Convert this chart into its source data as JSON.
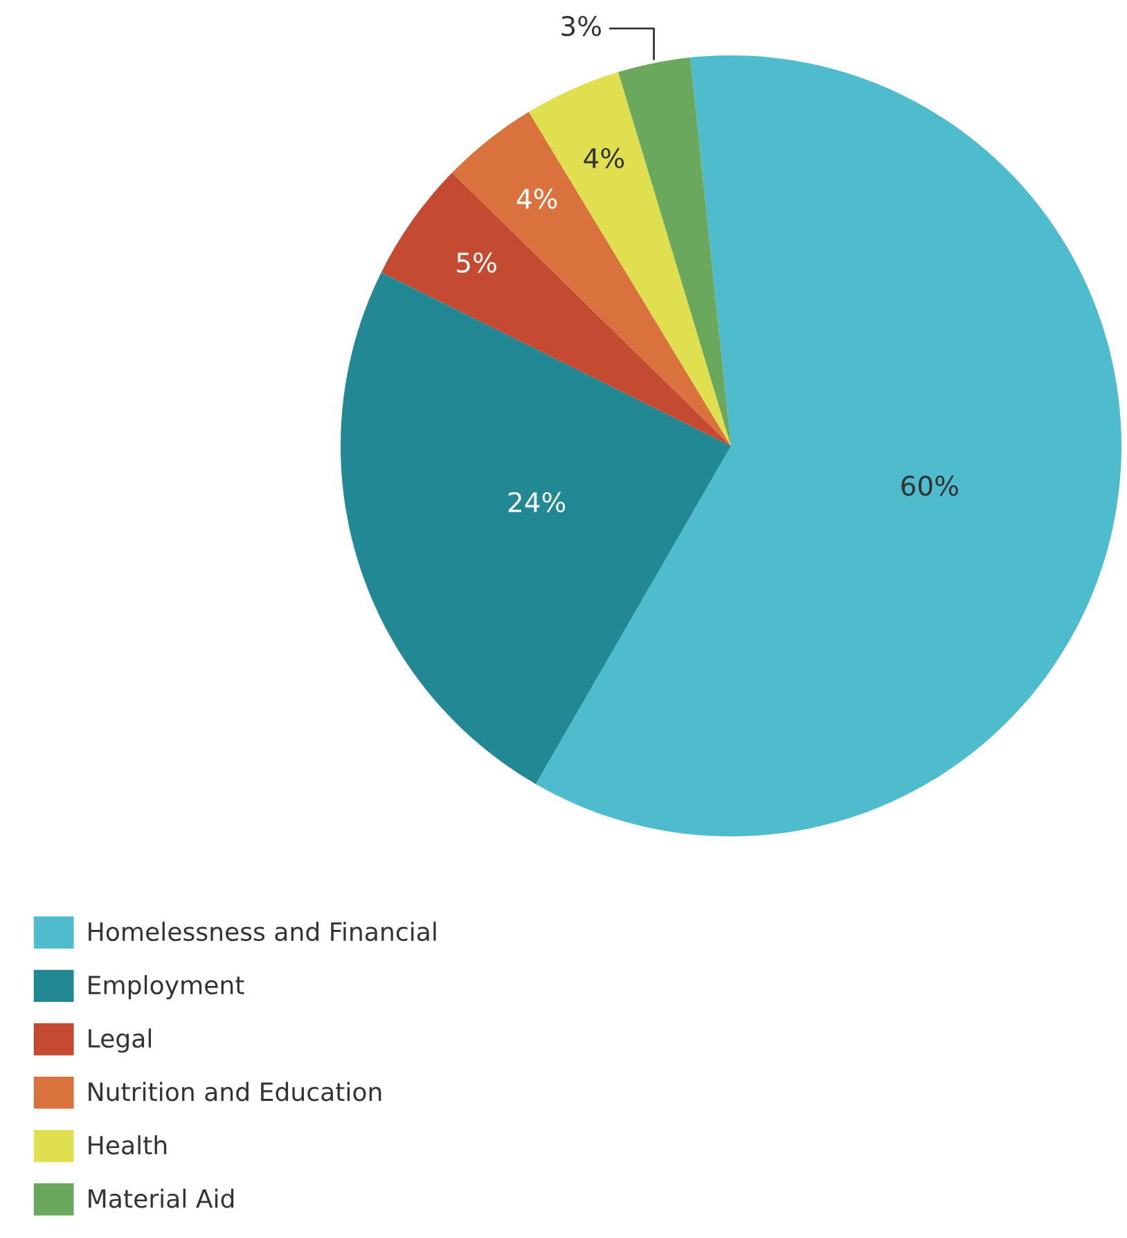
{
  "chart_data": {
    "type": "pie",
    "categories": [
      "Homelessness and Financial",
      "Employment",
      "Legal",
      "Nutrition and Education",
      "Health",
      "Material Aid"
    ],
    "values": [
      60,
      24,
      5,
      4,
      4,
      3
    ],
    "value_labels": [
      "60%",
      "24%",
      "5%",
      "4%",
      "4%",
      "3%"
    ],
    "colors": [
      "#4fbccd",
      "#228893",
      "#c44a32",
      "#d9723c",
      "#dfdf50",
      "#6aa85e"
    ],
    "legend": "bottom left"
  }
}
